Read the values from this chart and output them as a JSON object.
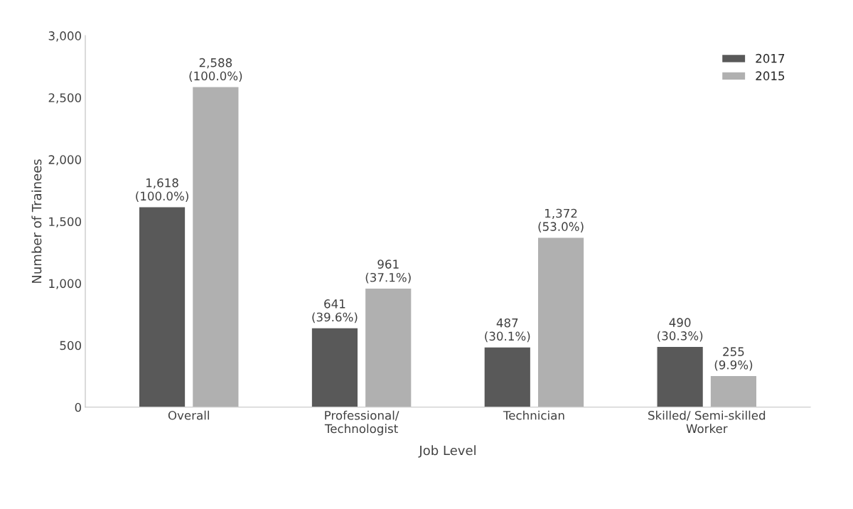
{
  "chart_data": {
    "type": "bar",
    "xlabel": "Job Level",
    "ylabel": "Number of Trainees",
    "categories": [
      "Overall",
      "Professional/\nTechnologist",
      "Technician",
      "Skilled/ Semi-skilled\nWorker"
    ],
    "series": [
      {
        "name": "2017",
        "color": "#595959",
        "values": [
          1618,
          641,
          487,
          490
        ],
        "value_labels": [
          "1,618\n(100.0%)",
          "641\n(39.6%)",
          "487\n(30.1%)",
          "490\n(30.3%)"
        ]
      },
      {
        "name": "2015",
        "color": "#b0b0b0",
        "values": [
          2588,
          961,
          1372,
          255
        ],
        "value_labels": [
          "2,588\n(100.0%)",
          "961\n(37.1%)",
          "1,372\n(53.0%)",
          "255\n(9.9%)"
        ]
      }
    ],
    "ylim": [
      0,
      3000
    ],
    "yticks": [
      {
        "value": 0,
        "label": "0"
      },
      {
        "value": 500,
        "label": "500"
      },
      {
        "value": 1000,
        "label": "1,000"
      },
      {
        "value": 1500,
        "label": "1,500"
      },
      {
        "value": 2000,
        "label": "2,000"
      },
      {
        "value": 2500,
        "label": "2,500"
      },
      {
        "value": 3000,
        "label": "3,000"
      }
    ],
    "grid": false,
    "legend": "top right"
  }
}
